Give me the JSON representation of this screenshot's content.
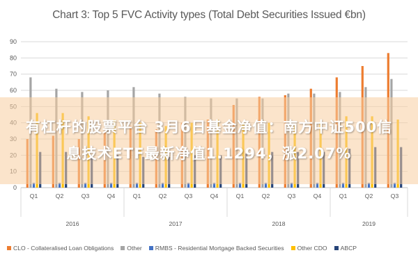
{
  "chart_data": {
    "type": "bar",
    "title": "Chart 3: Top 5 FVC Activity types (Total Debt Securities Issued €bn)",
    "ylim": [
      0,
      90
    ],
    "yticks": [
      0,
      10,
      20,
      30,
      40,
      50,
      60,
      70,
      80,
      90
    ],
    "categories": [
      "Q1",
      "Q2",
      "Q3",
      "Q4",
      "Q1",
      "Q2",
      "Q3",
      "Q4",
      "Q1",
      "Q2",
      "Q3",
      "Q4",
      "Q1",
      "Q2",
      "Q3"
    ],
    "year_groups": [
      {
        "label": "2016",
        "count": 4
      },
      {
        "label": "2017",
        "count": 4
      },
      {
        "label": "2018",
        "count": 4
      },
      {
        "label": "2019",
        "count": 3
      }
    ],
    "series": [
      {
        "name": "CLO - Collateralised Loan Obligations",
        "color": "#ED7D31",
        "values": [
          30,
          32,
          30,
          34,
          38,
          36,
          40,
          42,
          51,
          56,
          57,
          61,
          68,
          75,
          83
        ]
      },
      {
        "name": "Other",
        "color": "#A5A5A5",
        "values": [
          68,
          61,
          59,
          60,
          62,
          58,
          56,
          55,
          55,
          55,
          58,
          58,
          59,
          62,
          67
        ]
      },
      {
        "name": "RMBS - Residential Mortgage Backed Securities",
        "color": "#4472C4",
        "values": [
          3,
          3,
          3,
          3,
          3,
          3,
          3,
          3,
          3,
          3,
          3,
          3,
          3,
          3,
          3
        ]
      },
      {
        "name": "Other CDO",
        "color": "#FFC000",
        "values": [
          46,
          46,
          44,
          42,
          40,
          38,
          40,
          42,
          40,
          40,
          38,
          40,
          44,
          44,
          42
        ]
      },
      {
        "name": "ABCP",
        "color": "#264478",
        "values": [
          22,
          22,
          20,
          20,
          19,
          19,
          20,
          20,
          21,
          22,
          22,
          22,
          24,
          25,
          25
        ]
      }
    ]
  },
  "overlay": {
    "line1": "有杠杆的股票平台 3月6日基金净值：南方中证500信",
    "line2": "息技术ETF最新净值1.1294，涨2.07%"
  }
}
